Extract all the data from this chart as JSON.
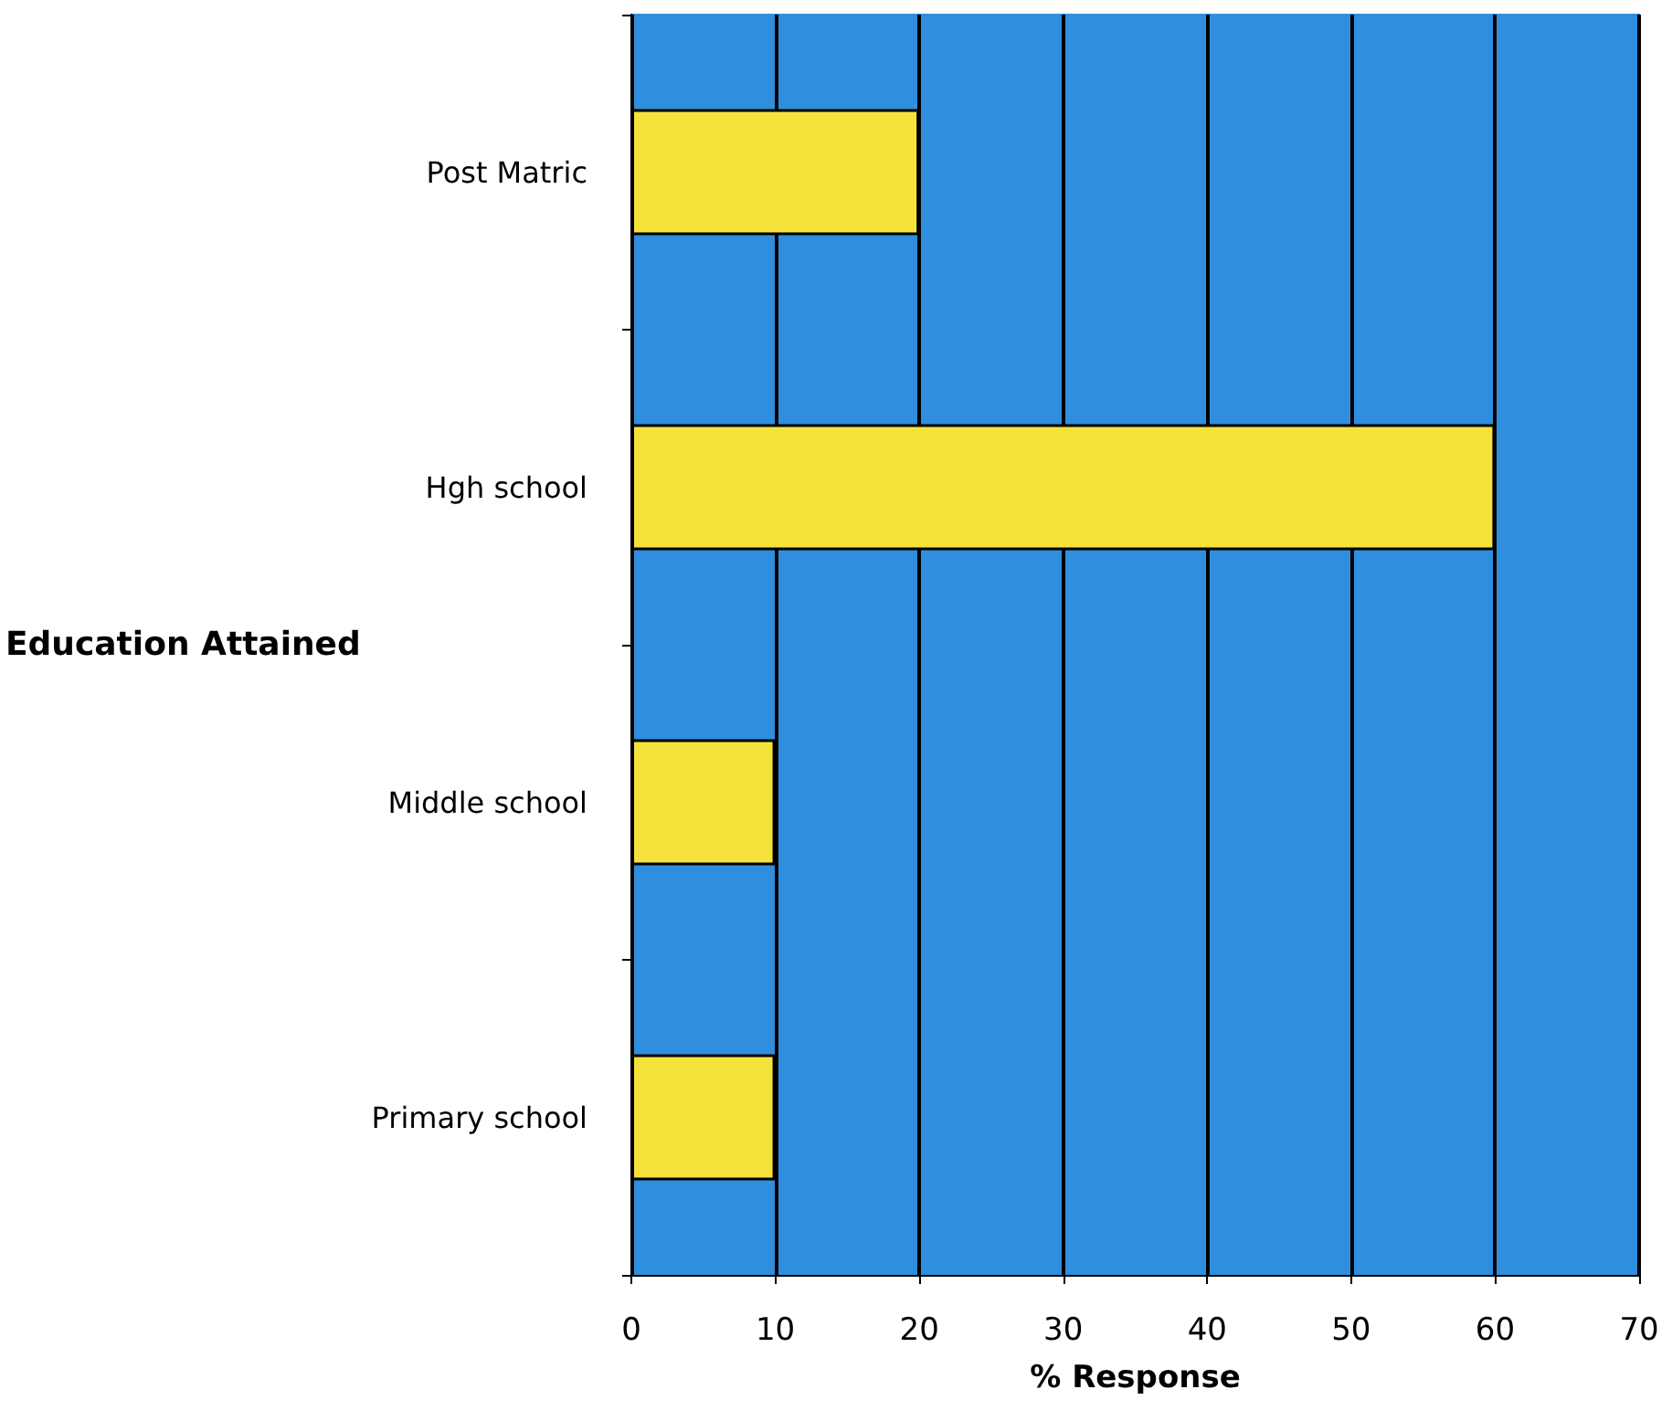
{
  "chart_data": {
    "type": "bar",
    "orientation": "horizontal",
    "xlabel": "% Response",
    "ylabel": "Education Attained",
    "categories": [
      "Post Matric",
      "Hgh school",
      "Middle school",
      "Primary school"
    ],
    "values": [
      20,
      60,
      10,
      10
    ],
    "color": "#f5e33c",
    "xlim": [
      0,
      70
    ],
    "xticks": [
      0,
      10,
      20,
      30,
      40,
      50,
      60,
      70
    ],
    "grid": "x"
  }
}
